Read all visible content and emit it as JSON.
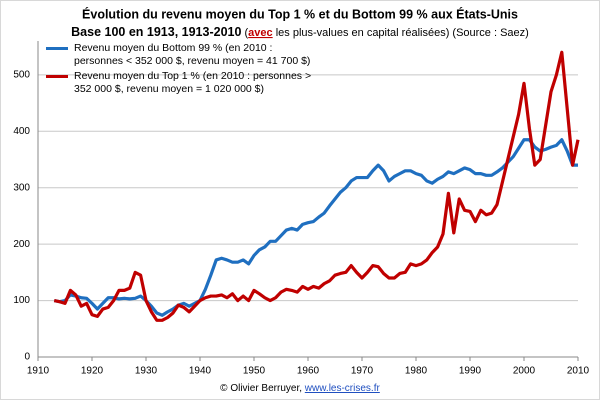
{
  "chart_data": {
    "type": "line",
    "title": "Évolution du revenu moyen du Top 1 % et du Bottom 99 % aux États-Unis",
    "subtitle": [
      "Base 100 en 1913, 1913-2010",
      " (",
      "avec",
      " les plus-values en capital réalisées) (Source : Saez)"
    ],
    "credit": "© Olivier Berruyer,",
    "credit_link": "www.les-crises.fr",
    "x": [
      1913,
      1914,
      1915,
      1916,
      1917,
      1918,
      1919,
      1920,
      1921,
      1922,
      1923,
      1924,
      1925,
      1926,
      1927,
      1928,
      1929,
      1930,
      1931,
      1932,
      1933,
      1934,
      1935,
      1936,
      1937,
      1938,
      1939,
      1940,
      1941,
      1942,
      1943,
      1944,
      1945,
      1946,
      1947,
      1948,
      1949,
      1950,
      1951,
      1952,
      1953,
      1954,
      1955,
      1956,
      1957,
      1958,
      1959,
      1960,
      1961,
      1962,
      1963,
      1964,
      1965,
      1966,
      1967,
      1968,
      1969,
      1970,
      1971,
      1972,
      1973,
      1974,
      1975,
      1976,
      1977,
      1978,
      1979,
      1980,
      1981,
      1982,
      1983,
      1984,
      1985,
      1986,
      1987,
      1988,
      1989,
      1990,
      1991,
      1992,
      1993,
      1994,
      1995,
      1996,
      1997,
      1998,
      1999,
      2000,
      2001,
      2002,
      2003,
      2004,
      2005,
      2006,
      2007,
      2008,
      2009,
      2010
    ],
    "series": [
      {
        "name": "Revenu moyen du Bottom 99 % (en 2010 : personnes < 352 000 $, revenu moyen = 41 700 $)",
        "color": "#1f6fc0",
        "values": [
          100,
          98,
          100,
          110,
          108,
          105,
          104,
          95,
          85,
          95,
          105,
          105,
          103,
          104,
          103,
          104,
          108,
          100,
          90,
          78,
          74,
          80,
          85,
          92,
          95,
          90,
          95,
          100,
          120,
          145,
          172,
          175,
          172,
          168,
          168,
          172,
          165,
          180,
          190,
          195,
          205,
          205,
          215,
          225,
          228,
          225,
          235,
          238,
          240,
          248,
          255,
          268,
          280,
          292,
          300,
          312,
          318,
          318,
          318,
          330,
          340,
          330,
          312,
          320,
          325,
          330,
          330,
          325,
          322,
          312,
          308,
          315,
          320,
          328,
          325,
          330,
          335,
          332,
          325,
          325,
          322,
          322,
          328,
          335,
          345,
          355,
          370,
          385,
          385,
          372,
          365,
          368,
          372,
          375,
          385,
          365,
          340,
          340
        ]
      },
      {
        "name": "Revenu moyen du Top 1 % (en 2010 : personnes > 352 000 $, revenu moyen = 1 020 000 $)",
        "color": "#c00000",
        "values": [
          100,
          98,
          95,
          118,
          110,
          90,
          95,
          75,
          72,
          85,
          88,
          100,
          118,
          118,
          122,
          150,
          145,
          100,
          80,
          65,
          65,
          70,
          78,
          92,
          88,
          80,
          90,
          100,
          105,
          108,
          108,
          110,
          105,
          112,
          100,
          108,
          100,
          118,
          112,
          105,
          100,
          105,
          115,
          120,
          118,
          115,
          125,
          120,
          125,
          122,
          130,
          135,
          145,
          148,
          150,
          162,
          150,
          140,
          150,
          162,
          160,
          148,
          140,
          140,
          148,
          150,
          165,
          162,
          165,
          172,
          185,
          195,
          218,
          290,
          220,
          280,
          260,
          258,
          240,
          260,
          252,
          255,
          270,
          310,
          350,
          390,
          430,
          485,
          405,
          340,
          350,
          410,
          470,
          500,
          540,
          440,
          340,
          385
        ]
      }
    ],
    "xlim": [
      1910,
      2010
    ],
    "xticks": [
      1910,
      1920,
      1930,
      1940,
      1950,
      1960,
      1970,
      1980,
      1990,
      2000,
      2010
    ],
    "ylim": [
      0,
      560
    ],
    "yticks": [
      0,
      100,
      200,
      300,
      400,
      500
    ],
    "grid": true,
    "legend": "upper left"
  }
}
